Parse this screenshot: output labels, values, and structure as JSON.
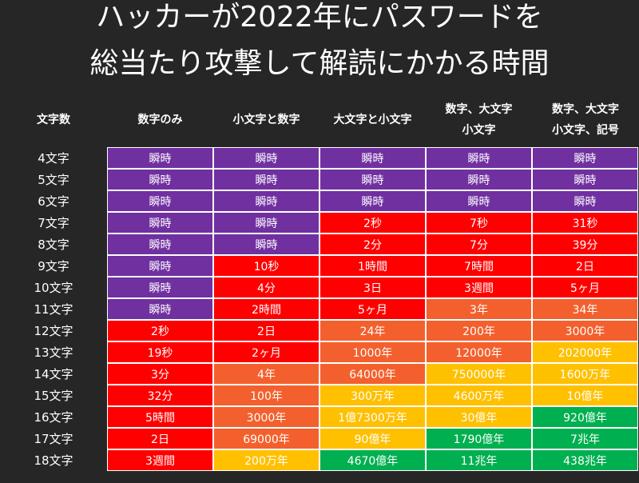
{
  "title": {
    "line1": "ハッカーが2022年にパスワードを",
    "line2": "総当たり攻撃して解読にかかる時間"
  },
  "colors": {
    "purple": "#7030a0",
    "red": "#ff0000",
    "orange": "#f4602d",
    "yellow": "#ffc000",
    "green": "#00b050",
    "background": "#262626"
  },
  "headers": {
    "chars": "文字数",
    "digits_only": "数字のみ",
    "lower_digits": "小文字と数字",
    "upper_lower": "大文字と小文字",
    "digits_upper_lower": [
      "数字、大文字",
      "小文字"
    ],
    "digits_upper_lower_symbols": [
      "数字、大文字",
      "小文字、記号"
    ]
  },
  "rows": [
    {
      "label": "4文字",
      "values": [
        "瞬時",
        "瞬時",
        "瞬時",
        "瞬時",
        "瞬時"
      ],
      "levels": [
        "purple",
        "purple",
        "purple",
        "purple",
        "purple"
      ]
    },
    {
      "label": "5文字",
      "values": [
        "瞬時",
        "瞬時",
        "瞬時",
        "瞬時",
        "瞬時"
      ],
      "levels": [
        "purple",
        "purple",
        "purple",
        "purple",
        "purple"
      ]
    },
    {
      "label": "6文字",
      "values": [
        "瞬時",
        "瞬時",
        "瞬時",
        "瞬時",
        "瞬時"
      ],
      "levels": [
        "purple",
        "purple",
        "purple",
        "purple",
        "purple"
      ]
    },
    {
      "label": "7文字",
      "values": [
        "瞬時",
        "瞬時",
        "2秒",
        "7秒",
        "31秒"
      ],
      "levels": [
        "purple",
        "purple",
        "red",
        "red",
        "red"
      ]
    },
    {
      "label": "8文字",
      "values": [
        "瞬時",
        "瞬時",
        "2分",
        "7分",
        "39分"
      ],
      "levels": [
        "purple",
        "purple",
        "red",
        "red",
        "red"
      ]
    },
    {
      "label": "9文字",
      "values": [
        "瞬時",
        "10秒",
        "1時間",
        "7時間",
        "2日"
      ],
      "levels": [
        "purple",
        "red",
        "red",
        "red",
        "red"
      ]
    },
    {
      "label": "10文字",
      "values": [
        "瞬時",
        "4分",
        "3日",
        "3週間",
        "5ヶ月"
      ],
      "levels": [
        "purple",
        "red",
        "red",
        "red",
        "red"
      ]
    },
    {
      "label": "11文字",
      "values": [
        "瞬時",
        "2時間",
        "5ヶ月",
        "3年",
        "34年"
      ],
      "levels": [
        "purple",
        "red",
        "red",
        "orange",
        "orange"
      ]
    },
    {
      "label": "12文字",
      "values": [
        "2秒",
        "2日",
        "24年",
        "200年",
        "3000年"
      ],
      "levels": [
        "red",
        "red",
        "orange",
        "orange",
        "orange"
      ]
    },
    {
      "label": "13文字",
      "values": [
        "19秒",
        "2ヶ月",
        "1000年",
        "12000年",
        "202000年"
      ],
      "levels": [
        "red",
        "red",
        "orange",
        "orange",
        "yellow"
      ]
    },
    {
      "label": "14文字",
      "values": [
        "3分",
        "4年",
        "64000年",
        "750000年",
        "1600万年"
      ],
      "levels": [
        "red",
        "orange",
        "orange",
        "yellow",
        "yellow"
      ]
    },
    {
      "label": "15文字",
      "values": [
        "32分",
        "100年",
        "300万年",
        "4600万年",
        "10億年"
      ],
      "levels": [
        "red",
        "orange",
        "yellow",
        "yellow",
        "yellow"
      ]
    },
    {
      "label": "16文字",
      "values": [
        "5時間",
        "3000年",
        "1億7300万年",
        "30億年",
        "920億年"
      ],
      "levels": [
        "red",
        "orange",
        "yellow",
        "yellow",
        "green"
      ]
    },
    {
      "label": "17文字",
      "values": [
        "2日",
        "69000年",
        "90億年",
        "1790億年",
        "7兆年"
      ],
      "levels": [
        "red",
        "orange",
        "yellow",
        "green",
        "green"
      ]
    },
    {
      "label": "18文字",
      "values": [
        "3週間",
        "200万年",
        "4670億年",
        "11兆年",
        "438兆年"
      ],
      "levels": [
        "red",
        "yellow",
        "green",
        "green",
        "green"
      ]
    }
  ]
}
